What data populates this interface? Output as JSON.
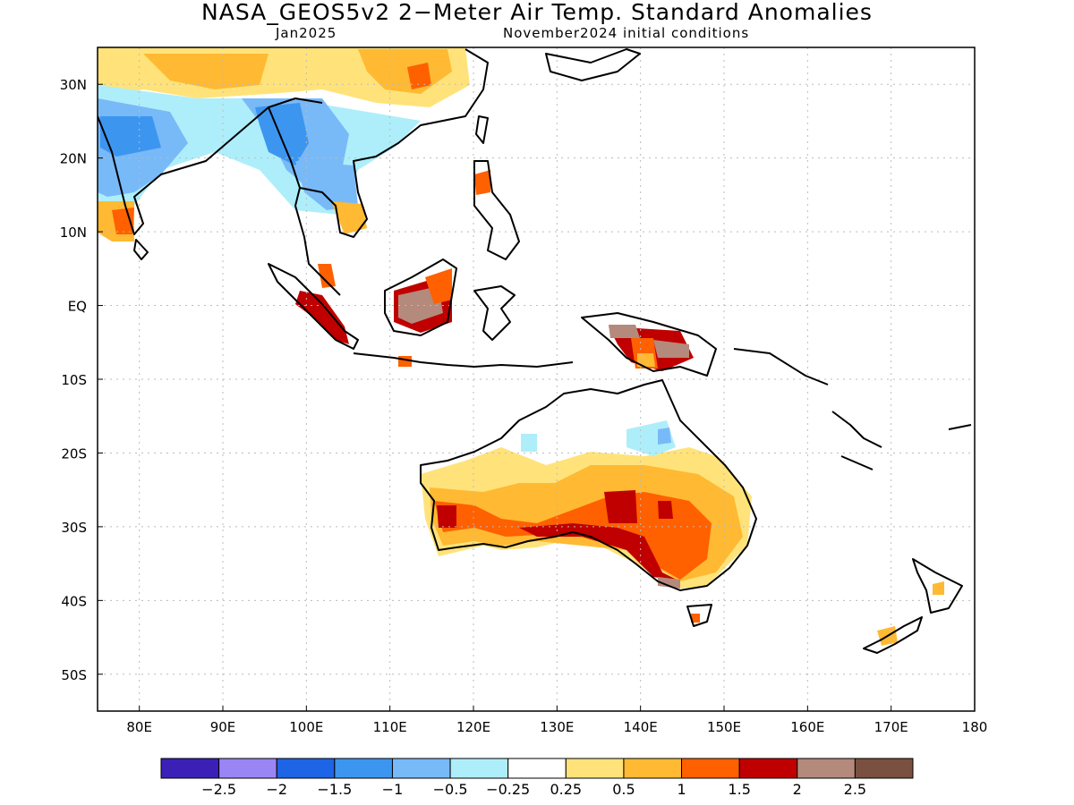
{
  "title": "NASA_GEOS5v2 2−Meter Air Temp. Standard Anomalies",
  "subtitle_left": "Jan2025",
  "subtitle_right": "November2024 initial conditions",
  "map": {
    "lon_range": [
      75,
      180
    ],
    "lat_range": [
      -55,
      35
    ],
    "lat_ticks": [
      {
        "value": 30,
        "label": "30N"
      },
      {
        "value": 20,
        "label": "20N"
      },
      {
        "value": 10,
        "label": "10N"
      },
      {
        "value": 0,
        "label": "EQ"
      },
      {
        "value": -10,
        "label": "10S"
      },
      {
        "value": -20,
        "label": "20S"
      },
      {
        "value": -30,
        "label": "30S"
      },
      {
        "value": -40,
        "label": "40S"
      },
      {
        "value": -50,
        "label": "50S"
      }
    ],
    "lon_ticks": [
      {
        "value": 80,
        "label": "80E"
      },
      {
        "value": 90,
        "label": "90E"
      },
      {
        "value": 100,
        "label": "100E"
      },
      {
        "value": 110,
        "label": "110E"
      },
      {
        "value": 120,
        "label": "120E"
      },
      {
        "value": 130,
        "label": "130E"
      },
      {
        "value": 140,
        "label": "140E"
      },
      {
        "value": 150,
        "label": "150E"
      },
      {
        "value": 160,
        "label": "160E"
      },
      {
        "value": 170,
        "label": "170E"
      },
      {
        "value": 180,
        "label": "180"
      }
    ]
  },
  "colorbar": {
    "colors": [
      "#3b20b8",
      "#9a85f5",
      "#1e64e6",
      "#3c96f0",
      "#78b9f8",
      "#aeeefa",
      "#ffffff",
      "#ffe37a",
      "#ffb932",
      "#ff6000",
      "#c00000",
      "#b48a7c",
      "#7a5040"
    ],
    "labels": [
      "−2.5",
      "−2",
      "−1.5",
      "−1",
      "−0.5",
      "−0.25",
      "0.25",
      "0.5",
      "1",
      "1.5",
      "2",
      "2.5"
    ]
  }
}
